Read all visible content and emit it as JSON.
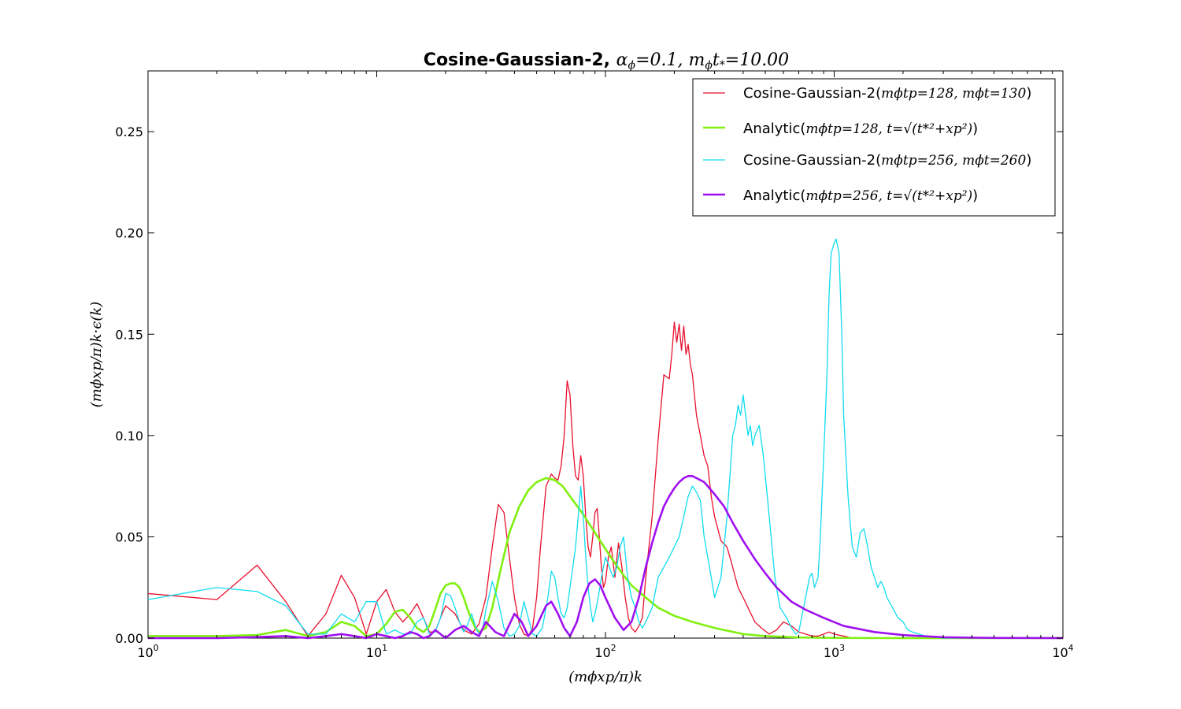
{
  "chart_data": {
    "type": "line",
    "title_prefix": "Cosine-Gaussian-2, ",
    "title_math": "α",
    "title_math_sub": "ϕ",
    "title_eq1": "=0.1, ",
    "title_mt": "m",
    "title_mt_sub": "ϕ",
    "title_t": "t",
    "title_t_sub": "*",
    "title_eq2": "=10.00",
    "xlabel": "(mϕxp/π)k",
    "ylabel": "(mϕxp/π)k·ϵ(k)",
    "xscale": "log",
    "xlim": [
      1,
      10000
    ],
    "ylim": [
      0,
      0.28
    ],
    "xticks": [
      {
        "value": 1,
        "base": "10",
        "exp": "0"
      },
      {
        "value": 10,
        "base": "10",
        "exp": "1"
      },
      {
        "value": 100,
        "base": "10",
        "exp": "2"
      },
      {
        "value": 1000,
        "base": "10",
        "exp": "3"
      },
      {
        "value": 10000,
        "base": "10",
        "exp": "4"
      }
    ],
    "yticks": [
      {
        "value": 0.0,
        "label": "0.00"
      },
      {
        "value": 0.05,
        "label": "0.05"
      },
      {
        "value": 0.1,
        "label": "0.10"
      },
      {
        "value": 0.15,
        "label": "0.15"
      },
      {
        "value": 0.2,
        "label": "0.20"
      },
      {
        "value": 0.25,
        "label": "0.25"
      }
    ],
    "legend_position": "top-right",
    "series": [
      {
        "name": "Cosine-Gaussian-2(mϕtp=128, mϕt=130)",
        "legend_prefix": "Cosine-Gaussian-2(",
        "legend_math": "mϕtp=128, mϕt=130",
        "legend_suffix": ")",
        "color": "#e8102e",
        "width": 1.3,
        "x": [
          1,
          2,
          3,
          4,
          5,
          6,
          7,
          8,
          9,
          10,
          11,
          12,
          13,
          14,
          15,
          16,
          17,
          18,
          19,
          20,
          22,
          24,
          26,
          28,
          30,
          32,
          34,
          36,
          38,
          40,
          42,
          44,
          46,
          48,
          50,
          52,
          55,
          58,
          60,
          62,
          64,
          66,
          68,
          70,
          72,
          74,
          76,
          78,
          80,
          82,
          84,
          86,
          88,
          90,
          92,
          94,
          96,
          98,
          100,
          103,
          106,
          110,
          114,
          118,
          122,
          126,
          130,
          135,
          140,
          145,
          150,
          160,
          170,
          180,
          190,
          195,
          200,
          205,
          210,
          215,
          220,
          225,
          230,
          235,
          240,
          250,
          260,
          270,
          280,
          290,
          300,
          320,
          340,
          360,
          380,
          400,
          420,
          450,
          480,
          520,
          560,
          600,
          650,
          700,
          750,
          800,
          850,
          900,
          950,
          1000,
          1100,
          1200,
          1300,
          1500,
          2000,
          3000,
          5000,
          10000
        ],
        "y": [
          0.022,
          0.019,
          0.036,
          0.018,
          0.001,
          0.012,
          0.031,
          0.02,
          0.002,
          0.018,
          0.024,
          0.013,
          0.008,
          0.012,
          0.017,
          0.01,
          0.003,
          0.003,
          0.01,
          0.016,
          0.012,
          0.004,
          0.002,
          0.007,
          0.02,
          0.045,
          0.066,
          0.062,
          0.04,
          0.02,
          0.007,
          0.002,
          0.001,
          0.005,
          0.02,
          0.045,
          0.075,
          0.081,
          0.079,
          0.078,
          0.085,
          0.1,
          0.127,
          0.12,
          0.095,
          0.08,
          0.078,
          0.09,
          0.08,
          0.06,
          0.045,
          0.04,
          0.05,
          0.062,
          0.064,
          0.05,
          0.035,
          0.025,
          0.028,
          0.04,
          0.045,
          0.03,
          0.047,
          0.035,
          0.02,
          0.01,
          0.005,
          0.003,
          0.006,
          0.01,
          0.03,
          0.06,
          0.098,
          0.13,
          0.128,
          0.14,
          0.156,
          0.146,
          0.155,
          0.142,
          0.154,
          0.14,
          0.145,
          0.135,
          0.13,
          0.11,
          0.1,
          0.09,
          0.085,
          0.07,
          0.06,
          0.048,
          0.045,
          0.035,
          0.025,
          0.02,
          0.015,
          0.008,
          0.005,
          0.002,
          0.004,
          0.008,
          0.006,
          0.003,
          0.002,
          0.001,
          0.001,
          0.002,
          0.003,
          0.002,
          0.001,
          0.0,
          0.0,
          0.0,
          0.0,
          0.0,
          0.0,
          0.0
        ]
      },
      {
        "name": "Analytic(mϕtp=128, t=√(t*²+xp²))",
        "legend_prefix": "Analytic(",
        "legend_math": "mϕtp=128, t=√(t*²+xp²)",
        "legend_suffix": ")",
        "color": "#80f010",
        "width": 2.6,
        "x": [
          1,
          2,
          3,
          4,
          5,
          6,
          7,
          8,
          9,
          10,
          11,
          12,
          13,
          14,
          15,
          16,
          17,
          18,
          19,
          20,
          21,
          22,
          23,
          24,
          25,
          26,
          27,
          28,
          30,
          32,
          35,
          38,
          42,
          46,
          50,
          55,
          60,
          65,
          70,
          80,
          90,
          100,
          110,
          120,
          130,
          150,
          170,
          200,
          240,
          300,
          400,
          500,
          700,
          1000,
          2000,
          10000
        ],
        "y": [
          0.001,
          0.001,
          0.0015,
          0.004,
          0.001,
          0.003,
          0.008,
          0.006,
          0.001,
          0.002,
          0.007,
          0.013,
          0.014,
          0.01,
          0.005,
          0.003,
          0.006,
          0.014,
          0.022,
          0.026,
          0.027,
          0.027,
          0.025,
          0.02,
          0.014,
          0.009,
          0.005,
          0.003,
          0.005,
          0.015,
          0.035,
          0.052,
          0.065,
          0.073,
          0.077,
          0.079,
          0.078,
          0.075,
          0.07,
          0.061,
          0.052,
          0.044,
          0.037,
          0.031,
          0.026,
          0.02,
          0.015,
          0.011,
          0.008,
          0.005,
          0.002,
          0.001,
          0.0003,
          0.0001,
          0.0,
          0.0
        ]
      },
      {
        "name": "Cosine-Gaussian-2(mϕtp=256, mϕt=260)",
        "legend_prefix": "Cosine-Gaussian-2(",
        "legend_math": "mϕtp=256, mϕt=260",
        "legend_suffix": ")",
        "color": "#10dcf0",
        "width": 1.3,
        "x": [
          1,
          2,
          3,
          4,
          5,
          6,
          7,
          8,
          9,
          10,
          11,
          12,
          13,
          14,
          15,
          16,
          17,
          18,
          19,
          20,
          21,
          22,
          23,
          24,
          25,
          26,
          27,
          28,
          29,
          30,
          32,
          34,
          36,
          38,
          40,
          42,
          44,
          46,
          48,
          50,
          53,
          56,
          58,
          60,
          62,
          64,
          66,
          68,
          70,
          72,
          74,
          76,
          78,
          80,
          82,
          84,
          86,
          88,
          90,
          93,
          96,
          100,
          104,
          108,
          112,
          116,
          120,
          125,
          130,
          135,
          140,
          145,
          150,
          160,
          170,
          180,
          190,
          200,
          210,
          220,
          230,
          240,
          250,
          260,
          270,
          280,
          290,
          300,
          320,
          340,
          350,
          360,
          370,
          380,
          390,
          400,
          410,
          420,
          430,
          440,
          450,
          470,
          490,
          510,
          530,
          550,
          580,
          620,
          650,
          680,
          700,
          720,
          750,
          780,
          800,
          820,
          850,
          870,
          900,
          930,
          950,
          970,
          1000,
          1020,
          1050,
          1080,
          1100,
          1150,
          1200,
          1250,
          1300,
          1350,
          1400,
          1450,
          1500,
          1550,
          1600,
          1650,
          1700,
          1800,
          1900,
          2000,
          2100,
          2200,
          2500,
          3000,
          4000,
          5000,
          10000
        ],
        "y": [
          0.019,
          0.025,
          0.023,
          0.016,
          0.002,
          0.002,
          0.012,
          0.008,
          0.018,
          0.018,
          0.002,
          0.004,
          0.002,
          0.002,
          0.008,
          0.01,
          0.002,
          0.003,
          0.01,
          0.022,
          0.021,
          0.015,
          0.008,
          0.003,
          0.007,
          0.012,
          0.006,
          0.002,
          0.004,
          0.014,
          0.028,
          0.018,
          0.005,
          0.001,
          0.002,
          0.006,
          0.018,
          0.01,
          0.002,
          0.001,
          0.005,
          0.02,
          0.033,
          0.03,
          0.02,
          0.012,
          0.01,
          0.015,
          0.025,
          0.035,
          0.045,
          0.06,
          0.075,
          0.06,
          0.04,
          0.025,
          0.015,
          0.008,
          0.012,
          0.02,
          0.03,
          0.04,
          0.035,
          0.03,
          0.035,
          0.045,
          0.05,
          0.03,
          0.02,
          0.015,
          0.008,
          0.005,
          0.008,
          0.015,
          0.03,
          0.035,
          0.04,
          0.045,
          0.05,
          0.06,
          0.07,
          0.075,
          0.072,
          0.068,
          0.05,
          0.04,
          0.03,
          0.02,
          0.03,
          0.06,
          0.08,
          0.1,
          0.105,
          0.115,
          0.11,
          0.12,
          0.11,
          0.1,
          0.105,
          0.095,
          0.1,
          0.105,
          0.09,
          0.07,
          0.05,
          0.03,
          0.015,
          0.01,
          0.005,
          0.002,
          0.003,
          0.01,
          0.02,
          0.03,
          0.032,
          0.025,
          0.03,
          0.05,
          0.09,
          0.13,
          0.17,
          0.19,
          0.195,
          0.197,
          0.19,
          0.15,
          0.11,
          0.07,
          0.045,
          0.04,
          0.052,
          0.054,
          0.045,
          0.035,
          0.03,
          0.025,
          0.028,
          0.025,
          0.02,
          0.015,
          0.01,
          0.008,
          0.004,
          0.003,
          0.001,
          0.0,
          0.0,
          0.0,
          0.0
        ]
      },
      {
        "name": "Analytic(mϕtp=256, t=√(t*²+xp²))",
        "legend_prefix": "Analytic(",
        "legend_math": "mϕtp=256, t=√(t*²+xp²)",
        "legend_suffix": ")",
        "color": "#a010f0",
        "width": 2.6,
        "x": [
          1,
          2,
          3,
          4,
          5,
          6,
          7,
          8,
          9,
          10,
          11,
          12,
          13,
          14,
          15,
          16,
          17,
          18,
          19,
          20,
          22,
          24,
          26,
          28,
          30,
          33,
          36,
          40,
          43,
          46,
          50,
          55,
          58,
          62,
          66,
          70,
          75,
          80,
          85,
          90,
          95,
          100,
          110,
          120,
          130,
          140,
          150,
          160,
          170,
          180,
          190,
          200,
          210,
          220,
          230,
          240,
          250,
          260,
          270,
          280,
          300,
          330,
          360,
          400,
          450,
          500,
          560,
          650,
          750,
          900,
          1100,
          1500,
          2000,
          3000,
          5000,
          10000
        ],
        "y": [
          0.0,
          0.0,
          0.0005,
          0.001,
          0.0,
          0.001,
          0.002,
          0.001,
          0.0,
          0.002,
          0.001,
          0.0,
          0.001,
          0.003,
          0.002,
          0.0,
          0.001,
          0.004,
          0.002,
          0.0,
          0.004,
          0.006,
          0.003,
          0.001,
          0.008,
          0.003,
          0.001,
          0.012,
          0.008,
          0.001,
          0.006,
          0.016,
          0.018,
          0.012,
          0.005,
          0.001,
          0.008,
          0.02,
          0.027,
          0.029,
          0.026,
          0.02,
          0.01,
          0.004,
          0.008,
          0.02,
          0.035,
          0.047,
          0.057,
          0.065,
          0.07,
          0.074,
          0.077,
          0.079,
          0.08,
          0.08,
          0.079,
          0.078,
          0.077,
          0.075,
          0.071,
          0.065,
          0.057,
          0.048,
          0.039,
          0.032,
          0.025,
          0.018,
          0.014,
          0.01,
          0.006,
          0.003,
          0.0015,
          0.0004,
          0.0001,
          0.0
        ]
      }
    ]
  }
}
